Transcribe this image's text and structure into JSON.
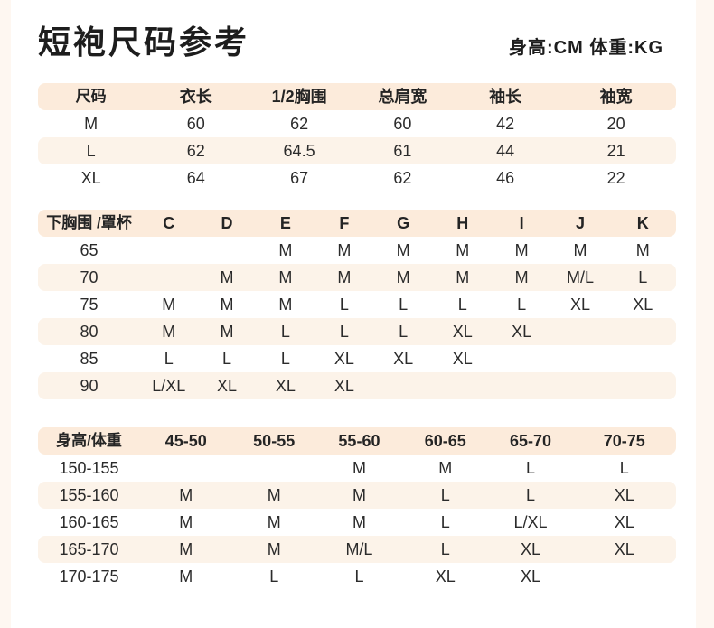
{
  "header": {
    "title": "短袍尺码参考",
    "unit_note": "身高:CM 体重:KG"
  },
  "colors": {
    "page_background": "#fef7f1",
    "card_background": "#ffffff",
    "header_row": "#fcebdb",
    "zebra_row": "#fcf3e9",
    "text": "#2e2e2e"
  },
  "tables": [
    {
      "name": "garment-measurements",
      "headers": [
        "尺码",
        "衣长",
        "1/2胸围",
        "总肩宽",
        "袖长",
        "袖宽"
      ],
      "rows": [
        [
          "M",
          "60",
          "62",
          "60",
          "42",
          "20"
        ],
        [
          "L",
          "62",
          "64.5",
          "61",
          "44",
          "21"
        ],
        [
          "XL",
          "64",
          "67",
          "62",
          "46",
          "22"
        ]
      ]
    },
    {
      "name": "underbust-cup-size",
      "headers": [
        "下胸围 /罩杯",
        "C",
        "D",
        "E",
        "F",
        "G",
        "H",
        "I",
        "J",
        "K"
      ],
      "rows": [
        [
          "65",
          "",
          "",
          "M",
          "M",
          "M",
          "M",
          "M",
          "M",
          "M"
        ],
        [
          "70",
          "",
          "M",
          "M",
          "M",
          "M",
          "M",
          "M",
          "M/L",
          "L"
        ],
        [
          "75",
          "M",
          "M",
          "M",
          "L",
          "L",
          "L",
          "L",
          "XL",
          "XL"
        ],
        [
          "80",
          "M",
          "M",
          "L",
          "L",
          "L",
          "XL",
          "XL",
          "",
          ""
        ],
        [
          "85",
          "L",
          "L",
          "L",
          "XL",
          "XL",
          "XL",
          "",
          "",
          ""
        ],
        [
          "90",
          "L/XL",
          "XL",
          "XL",
          "XL",
          "",
          "",
          "",
          "",
          ""
        ]
      ]
    },
    {
      "name": "height-weight-size",
      "headers": [
        "身高/体重",
        "45-50",
        "50-55",
        "55-60",
        "60-65",
        "65-70",
        "70-75"
      ],
      "rows": [
        [
          "150-155",
          "",
          "",
          "M",
          "M",
          "L",
          "L"
        ],
        [
          "155-160",
          "M",
          "M",
          "M",
          "L",
          "L",
          "XL"
        ],
        [
          "160-165",
          "M",
          "M",
          "M",
          "L",
          "L/XL",
          "XL"
        ],
        [
          "165-170",
          "M",
          "M",
          "M/L",
          "L",
          "XL",
          "XL"
        ],
        [
          "170-175",
          "M",
          "L",
          "L",
          "XL",
          "XL",
          ""
        ]
      ]
    }
  ]
}
